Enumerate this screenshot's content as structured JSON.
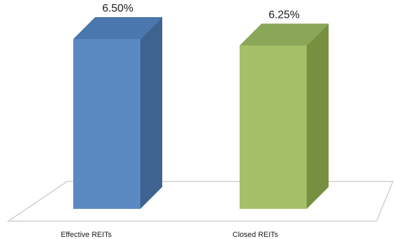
{
  "chart_data": {
    "type": "bar",
    "style": "3d-column",
    "categories": [
      "Effective REITs",
      "Closed REITs"
    ],
    "values": [
      6.5,
      6.25
    ],
    "data_labels": [
      "6.50%",
      "6.25%"
    ],
    "ylim": [
      0,
      6.5
    ],
    "grid": false,
    "legend": "none",
    "colors": {
      "bar_front": [
        "#5b8ac2",
        "#a6c06a"
      ],
      "bar_side": [
        "#3e6390",
        "#76903f"
      ],
      "bar_top": [
        "#4a77ad",
        "#8aa658"
      ],
      "floor_stroke": "#cfcfcf"
    }
  }
}
